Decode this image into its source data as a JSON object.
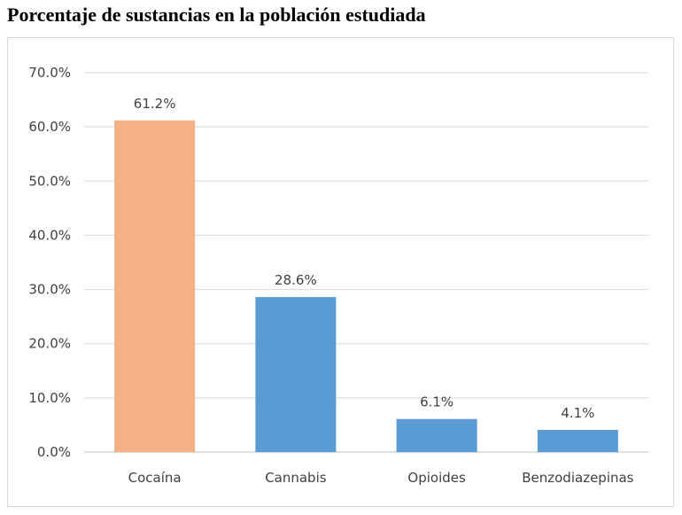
{
  "chart_data": {
    "type": "bar",
    "title": "Porcentaje de sustancias en la población estudiada",
    "categories": [
      "Cocaína",
      "Cannabis",
      "Opioides",
      "Benzodiazepinas"
    ],
    "values": [
      61.2,
      28.6,
      6.1,
      4.1
    ],
    "data_labels": [
      "61.2%",
      "28.6%",
      "6.1%",
      "4.1%"
    ],
    "bar_colors": [
      "#F4B183",
      "#5B9BD5",
      "#5B9BD5",
      "#5B9BD5"
    ],
    "yticks": [
      "0.0%",
      "10.0%",
      "20.0%",
      "30.0%",
      "40.0%",
      "50.0%",
      "60.0%",
      "70.0%"
    ],
    "ylim": [
      0,
      70
    ],
    "xlabel": "",
    "ylabel": "",
    "grid": true,
    "legend": "none"
  }
}
